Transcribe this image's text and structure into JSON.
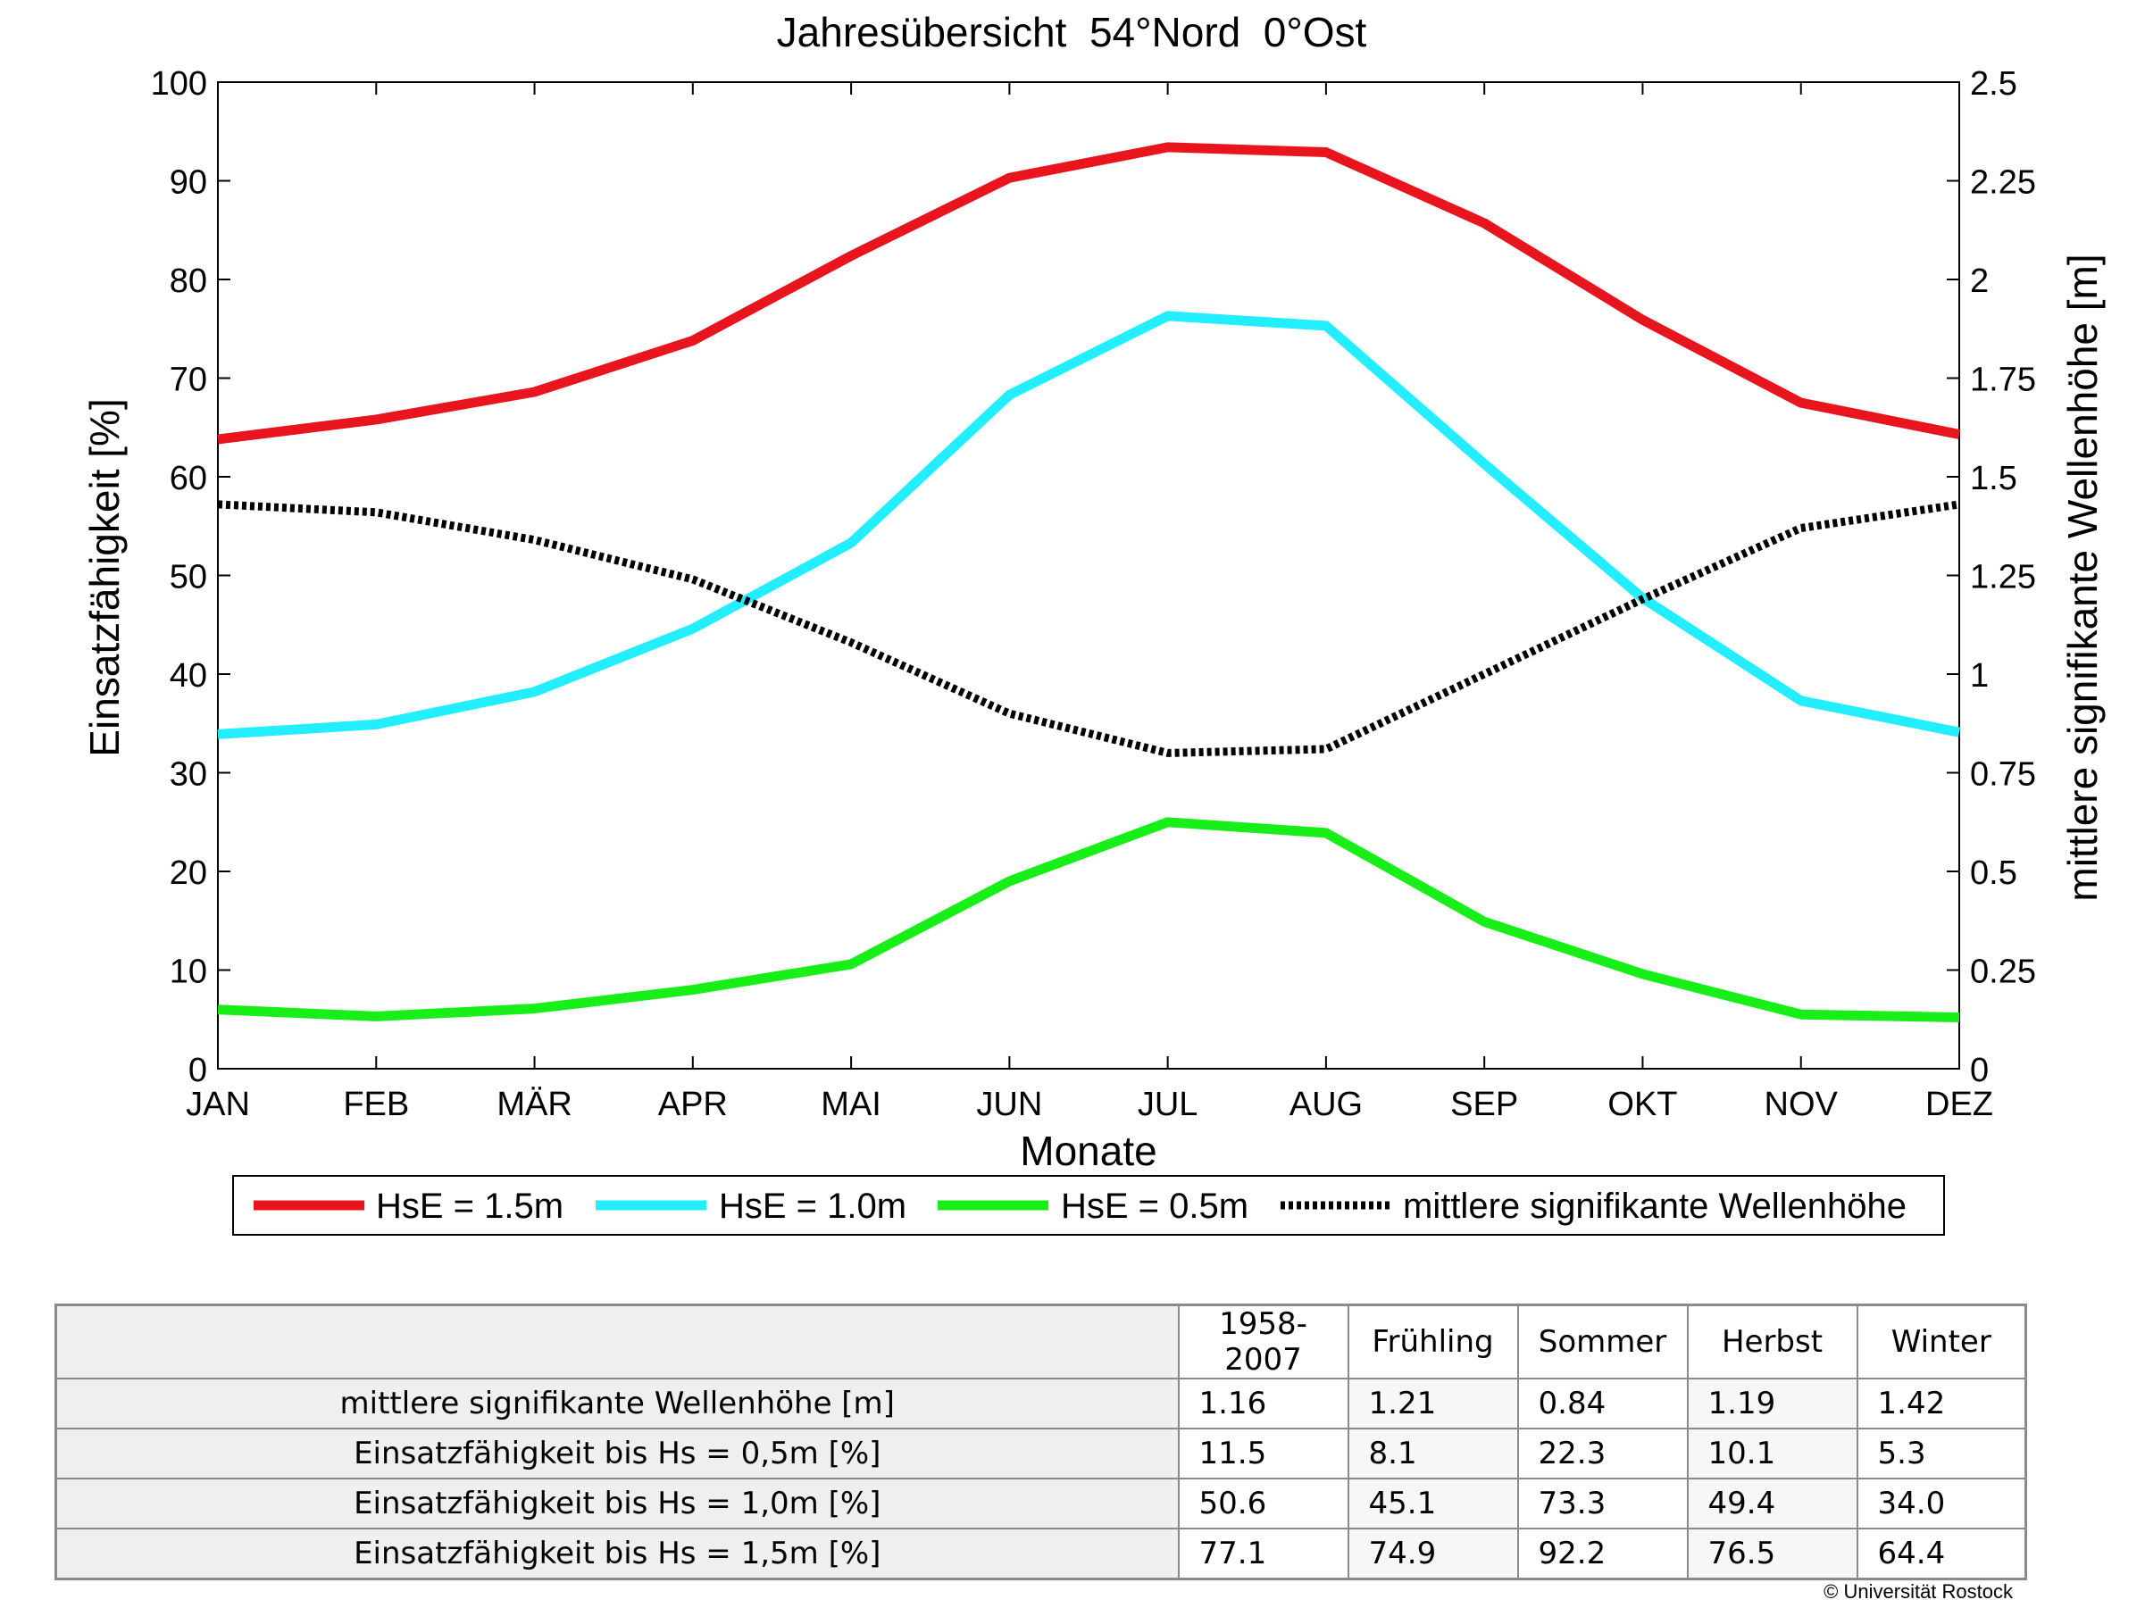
{
  "chart_data": {
    "type": "line",
    "title": "Jahresübersicht  54°Nord  0°Ost",
    "xlabel": "Monate",
    "ylabel_left": "Einsatzfähigkeit [%]",
    "ylabel_right": "mittlere signifikante Wellenhöhe [m]",
    "categories": [
      "JAN",
      "FEB",
      "MÄR",
      "APR",
      "MAI",
      "JUN",
      "JUL",
      "AUG",
      "SEP",
      "OKT",
      "NOV",
      "DEZ"
    ],
    "y_left": {
      "min": 0,
      "max": 100,
      "ticks": [
        0,
        10,
        20,
        30,
        40,
        50,
        60,
        70,
        80,
        90,
        100
      ],
      "tick_labels": [
        "0",
        "10",
        "20",
        "30",
        "40",
        "50",
        "60",
        "70",
        "80",
        "90",
        "100"
      ]
    },
    "y_right": {
      "min": 0,
      "max": 2.5,
      "ticks": [
        0,
        0.25,
        0.5,
        0.75,
        1,
        1.25,
        1.5,
        1.75,
        2,
        2.25,
        2.5
      ],
      "tick_labels": [
        "0",
        "0.25",
        "0.5",
        "0.75",
        "1",
        "1.25",
        "1.5",
        "1.75",
        "2",
        "2.25",
        "2.5"
      ]
    },
    "grid": false,
    "legend_position": "bottom",
    "series": [
      {
        "name": "HsE = 1.5m",
        "axis": "left",
        "color": "#e8141e",
        "style": "solid",
        "values": [
          63.8,
          65.8,
          68.6,
          73.8,
          82.4,
          90.3,
          93.4,
          92.9,
          85.7,
          75.9,
          67.5,
          64.3
        ]
      },
      {
        "name": "HsE = 1.0m",
        "axis": "left",
        "color": "#22eeff",
        "style": "solid",
        "values": [
          33.9,
          34.9,
          38.2,
          44.6,
          53.3,
          68.3,
          76.3,
          75.3,
          61.3,
          47.7,
          37.3,
          34.1
        ]
      },
      {
        "name": "HsE = 0.5m",
        "axis": "left",
        "color": "#18ee18",
        "style": "solid",
        "values": [
          6.0,
          5.3,
          6.1,
          8.0,
          10.6,
          19.0,
          25.0,
          23.9,
          14.9,
          9.6,
          5.5,
          5.2
        ]
      },
      {
        "name": "mittlere signifikante Wellenhöhe",
        "axis": "right",
        "color": "#000000",
        "style": "dotted",
        "values": [
          1.43,
          1.41,
          1.34,
          1.24,
          1.08,
          0.9,
          0.8,
          0.81,
          1.0,
          1.19,
          1.37,
          1.43
        ]
      }
    ]
  },
  "table": {
    "columns": [
      "1958-2007",
      "Frühling",
      "Sommer",
      "Herbst",
      "Winter"
    ],
    "rows": [
      {
        "label": "mittlere signifikante Wellenhöhe [m]",
        "values": [
          "1.16",
          "1.21",
          "0.84",
          "1.19",
          "1.42"
        ]
      },
      {
        "label": "Einsatzfähigkeit bis Hs = 0,5m [%]",
        "values": [
          "11.5",
          "8.1",
          "22.3",
          "10.1",
          "5.3"
        ]
      },
      {
        "label": "Einsatzfähigkeit bis Hs = 1,0m [%]",
        "values": [
          "50.6",
          "45.1",
          "73.3",
          "49.4",
          "34.0"
        ]
      },
      {
        "label": "Einsatzfähigkeit bis Hs = 1,5m [%]",
        "values": [
          "77.1",
          "74.9",
          "92.2",
          "76.5",
          "64.4"
        ]
      }
    ]
  },
  "copyright": "© Universität Rostock"
}
